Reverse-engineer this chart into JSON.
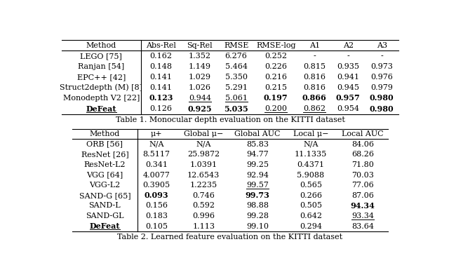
{
  "table1_caption": "Table 1. Monocular depth evaluation on the KITTI dataset",
  "table2_caption": "Table 2. Learned feature evaluation on the KITTI dataset",
  "table1_headers": [
    "Method",
    "Abs-Rel",
    "Sq-Rel",
    "RMSE",
    "RMSE-log",
    "A1",
    "A2",
    "A3"
  ],
  "table1_rows": [
    [
      "LEGO [75]",
      "0.162",
      "1.352",
      "6.276",
      "0.252",
      "-",
      "-",
      "-"
    ],
    [
      "Ranjan [54]",
      "0.148",
      "1.149",
      "5.464",
      "0.226",
      "0.815",
      "0.935",
      "0.973"
    ],
    [
      "EPC++ [42]",
      "0.141",
      "1.029",
      "5.350",
      "0.216",
      "0.816",
      "0.941",
      "0.976"
    ],
    [
      "Struct2depth (M) [8]",
      "0.141",
      "1.026",
      "5.291",
      "0.215",
      "0.816",
      "0.945",
      "0.979"
    ],
    [
      "Monodepth V2 [22]",
      "0.123",
      "0.944",
      "5.061",
      "0.197",
      "0.866",
      "0.957",
      "0.980"
    ],
    [
      "DeFeat",
      "0.126",
      "0.925",
      "5.035",
      "0.200",
      "0.862",
      "0.954",
      "0.980"
    ]
  ],
  "table1_bold": [
    [
      false,
      false,
      false,
      false,
      false,
      false,
      false,
      false
    ],
    [
      false,
      false,
      false,
      false,
      false,
      false,
      false,
      false
    ],
    [
      false,
      false,
      false,
      false,
      false,
      false,
      false,
      false
    ],
    [
      false,
      false,
      false,
      false,
      false,
      false,
      false,
      false
    ],
    [
      false,
      true,
      false,
      false,
      true,
      true,
      true,
      true
    ],
    [
      true,
      false,
      true,
      true,
      false,
      false,
      false,
      true
    ]
  ],
  "table1_underline": [
    [
      false,
      false,
      false,
      false,
      false,
      false,
      false,
      false
    ],
    [
      false,
      false,
      false,
      false,
      false,
      false,
      false,
      false
    ],
    [
      false,
      false,
      false,
      false,
      false,
      false,
      false,
      false
    ],
    [
      false,
      false,
      false,
      false,
      false,
      false,
      false,
      false
    ],
    [
      false,
      false,
      true,
      true,
      false,
      false,
      false,
      false
    ],
    [
      true,
      false,
      false,
      false,
      true,
      true,
      false,
      false
    ]
  ],
  "table2_headers": [
    "Method",
    "μ+",
    "Global μ−",
    "Global AUC",
    "Local μ−",
    "Local AUC"
  ],
  "table2_rows": [
    [
      "ORB [56]",
      "N/A",
      "N/A",
      "85.83",
      "N/A",
      "84.06"
    ],
    [
      "ResNet [26]",
      "8.5117",
      "25.9872",
      "94.77",
      "11.1335",
      "68.26"
    ],
    [
      "ResNet-L2",
      "0.341",
      "1.0391",
      "99.25",
      "0.4371",
      "71.80"
    ],
    [
      "VGG [64]",
      "4.0077",
      "12.6543",
      "92.94",
      "5.9088",
      "70.03"
    ],
    [
      "VGG-L2",
      "0.3905",
      "1.2235",
      "99.57",
      "0.565",
      "77.06"
    ],
    [
      "SAND-G [65]",
      "0.093",
      "0.746",
      "99.73",
      "0.266",
      "87.06"
    ],
    [
      "SAND-L",
      "0.156",
      "0.592",
      "98.88",
      "0.505",
      "94.34"
    ],
    [
      "SAND-GL",
      "0.183",
      "0.996",
      "99.28",
      "0.642",
      "93.34"
    ],
    [
      "DeFeat",
      "0.105",
      "1.113",
      "99.10",
      "0.294",
      "83.64"
    ]
  ],
  "table2_bold": [
    [
      false,
      false,
      false,
      false,
      false,
      false
    ],
    [
      false,
      false,
      false,
      false,
      false,
      false
    ],
    [
      false,
      false,
      false,
      false,
      false,
      false
    ],
    [
      false,
      false,
      false,
      false,
      false,
      false
    ],
    [
      false,
      false,
      false,
      false,
      false,
      false
    ],
    [
      false,
      true,
      false,
      true,
      false,
      false
    ],
    [
      false,
      false,
      false,
      false,
      false,
      true
    ],
    [
      false,
      false,
      false,
      false,
      false,
      false
    ],
    [
      true,
      false,
      false,
      false,
      false,
      false
    ]
  ],
  "table2_underline": [
    [
      false,
      false,
      false,
      false,
      false,
      false
    ],
    [
      false,
      false,
      false,
      false,
      false,
      false
    ],
    [
      false,
      false,
      false,
      false,
      false,
      false
    ],
    [
      false,
      false,
      false,
      false,
      false,
      false
    ],
    [
      false,
      false,
      false,
      true,
      false,
      false
    ],
    [
      false,
      false,
      false,
      false,
      false,
      false
    ],
    [
      false,
      false,
      false,
      false,
      false,
      false
    ],
    [
      false,
      false,
      false,
      false,
      false,
      true
    ],
    [
      true,
      false,
      false,
      false,
      false,
      false
    ]
  ],
  "bg_color": "#ffffff",
  "text_color": "#000000",
  "font_size": 8.0
}
